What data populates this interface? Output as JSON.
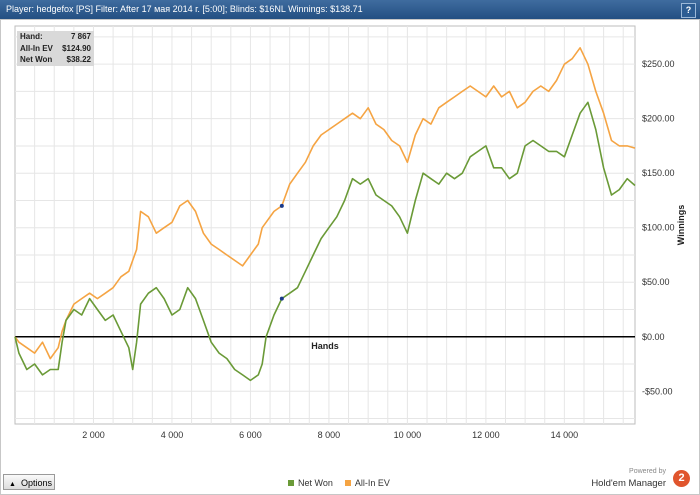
{
  "header": {
    "title": "Player: hedgefox [PS]  Filter: After 17 мая 2014 г. [5:00]; Blinds: $16NL  Winnings: $138.71",
    "help_label": "?"
  },
  "stats": [
    {
      "label": "Hand:",
      "value": "7 867"
    },
    {
      "label": "All-In EV",
      "value": "$124.90"
    },
    {
      "label": "Net Won",
      "value": "$38.22"
    }
  ],
  "footer": {
    "options_label": "Options",
    "powered_by": "Powered by",
    "brand": "Hold'em Manager",
    "brand_logo": "2"
  },
  "colors": {
    "net_won": "#6a9a37",
    "all_in_ev": "#f5a443",
    "zero_line": "#000000",
    "marker": "#1a3a8a"
  },
  "chart_data": {
    "type": "line",
    "xlabel": "Hands",
    "ylabel": "Winnings",
    "xlim": [
      0,
      15800
    ],
    "ylim": [
      -80,
      285
    ],
    "x_ticks": [
      2000,
      4000,
      6000,
      8000,
      10000,
      12000,
      14000
    ],
    "x_tick_labels": [
      "2 000",
      "4 000",
      "6 000",
      "8 000",
      "10 000",
      "12 000",
      "14 000"
    ],
    "y_ticks": [
      250,
      200,
      150,
      100,
      50,
      0,
      -50
    ],
    "y_tick_labels": [
      "$250.00",
      "$200.00",
      "$150.00",
      "$100.00",
      "$50.00",
      "$0.00",
      "-$50.00"
    ],
    "grid": true,
    "legend_position": "bottom",
    "highlight_hand": 6800,
    "series": [
      {
        "name": "Net Won",
        "x": [
          0,
          100,
          300,
          500,
          700,
          900,
          1100,
          1200,
          1300,
          1500,
          1700,
          1900,
          2100,
          2300,
          2500,
          2700,
          2900,
          3000,
          3100,
          3200,
          3400,
          3600,
          3800,
          4000,
          4200,
          4400,
          4600,
          4800,
          5000,
          5200,
          5400,
          5600,
          5800,
          6000,
          6200,
          6300,
          6400,
          6600,
          6800,
          7000,
          7200,
          7400,
          7600,
          7800,
          8000,
          8200,
          8400,
          8600,
          8800,
          9000,
          9200,
          9400,
          9600,
          9800,
          10000,
          10200,
          10400,
          10600,
          10800,
          11000,
          11200,
          11400,
          11600,
          11800,
          12000,
          12200,
          12400,
          12600,
          12800,
          13000,
          13200,
          13400,
          13600,
          13800,
          14000,
          14200,
          14400,
          14600,
          14800,
          15000,
          15200,
          15400,
          15600,
          15800
        ],
        "y": [
          0,
          -15,
          -30,
          -25,
          -35,
          -30,
          -30,
          -5,
          15,
          25,
          20,
          35,
          25,
          15,
          20,
          5,
          -10,
          -30,
          -5,
          30,
          40,
          45,
          35,
          20,
          25,
          45,
          35,
          15,
          -5,
          -15,
          -20,
          -30,
          -35,
          -40,
          -35,
          -25,
          0,
          20,
          35,
          40,
          45,
          60,
          75,
          90,
          100,
          110,
          125,
          145,
          140,
          145,
          130,
          125,
          120,
          110,
          95,
          125,
          150,
          145,
          140,
          150,
          145,
          150,
          165,
          170,
          175,
          155,
          155,
          145,
          150,
          175,
          180,
          175,
          170,
          170,
          165,
          185,
          205,
          215,
          190,
          155,
          130,
          135,
          145,
          138.71
        ]
      },
      {
        "name": "All-In EV",
        "x": [
          0,
          100,
          300,
          500,
          700,
          900,
          1100,
          1200,
          1300,
          1500,
          1700,
          1900,
          2100,
          2300,
          2500,
          2700,
          2900,
          3000,
          3100,
          3200,
          3400,
          3600,
          3800,
          4000,
          4200,
          4400,
          4600,
          4800,
          5000,
          5200,
          5400,
          5600,
          5800,
          6000,
          6200,
          6300,
          6400,
          6600,
          6800,
          7000,
          7200,
          7400,
          7600,
          7800,
          8000,
          8200,
          8400,
          8600,
          8800,
          9000,
          9200,
          9400,
          9600,
          9800,
          10000,
          10200,
          10400,
          10600,
          10800,
          11000,
          11200,
          11400,
          11600,
          11800,
          12000,
          12200,
          12400,
          12600,
          12800,
          13000,
          13200,
          13400,
          13600,
          13800,
          14000,
          14200,
          14400,
          14600,
          14800,
          15000,
          15200,
          15400,
          15600,
          15800
        ],
        "y": [
          0,
          -5,
          -10,
          -15,
          -5,
          -20,
          -10,
          5,
          15,
          30,
          35,
          40,
          35,
          40,
          45,
          55,
          60,
          70,
          80,
          115,
          110,
          95,
          100,
          105,
          120,
          125,
          115,
          95,
          85,
          80,
          75,
          70,
          65,
          75,
          85,
          100,
          105,
          115,
          120,
          140,
          150,
          160,
          175,
          185,
          190,
          195,
          200,
          205,
          200,
          210,
          195,
          190,
          180,
          175,
          160,
          185,
          200,
          195,
          210,
          215,
          220,
          225,
          230,
          225,
          220,
          230,
          220,
          225,
          210,
          215,
          225,
          230,
          225,
          235,
          250,
          255,
          265,
          250,
          225,
          205,
          180,
          175,
          175,
          173
        ]
      }
    ]
  }
}
